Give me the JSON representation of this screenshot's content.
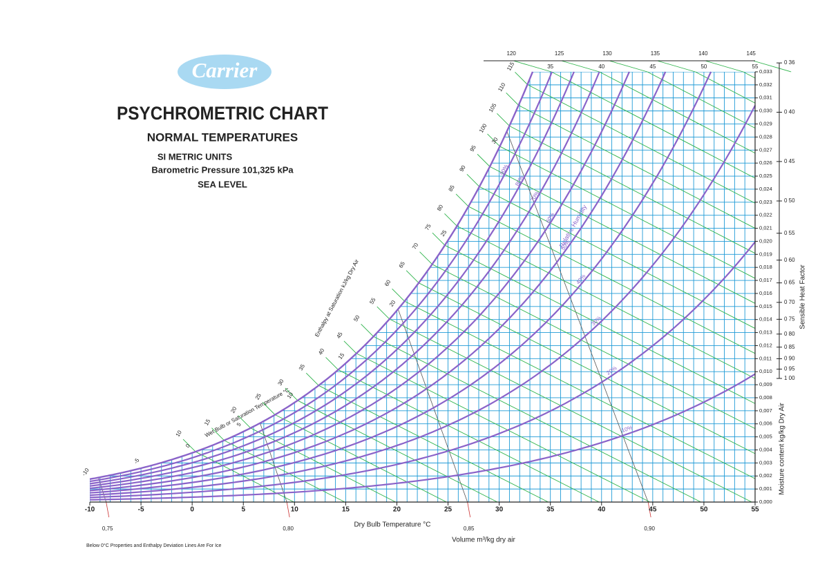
{
  "header": {
    "logo": "Carrier",
    "title": "PSYCHROMETRIC CHART",
    "subtitle": "NORMAL TEMPERATURES",
    "units": "SI METRIC UNITS",
    "pressure": "Barometric Pressure 101,325 kPa",
    "level": "SEA LEVEL"
  },
  "chart_data": {
    "type": "psychrometric",
    "xlabel": "Dry Bulb Temperature  °C",
    "ylabel": "Moisture content  kg/kg Dry Air",
    "xlim": [
      -10,
      55
    ],
    "ylim": [
      0,
      0.033
    ],
    "xticks": [
      -10,
      -5,
      0,
      5,
      10,
      15,
      20,
      25,
      30,
      35,
      40,
      45,
      50,
      55
    ],
    "xgrid": [
      -10,
      -9,
      -8,
      -7,
      -6,
      -5,
      -4,
      -3,
      -2,
      -1,
      0,
      1,
      2,
      3,
      4,
      5,
      6,
      7,
      8,
      9,
      10,
      11,
      12,
      13,
      14,
      15,
      16,
      17,
      18,
      19,
      20,
      21,
      22,
      23,
      24,
      25,
      26,
      27,
      28,
      29,
      30,
      31,
      32,
      33,
      34,
      35,
      36,
      37,
      38,
      39,
      40,
      41,
      42,
      43,
      44,
      45,
      46,
      47,
      48,
      49,
      50,
      51,
      52,
      53,
      54,
      55
    ],
    "yticks": [
      {
        "value": 0,
        "label": "0,000"
      },
      {
        "value": 0.001,
        "label": "0,001"
      },
      {
        "value": 0.002,
        "label": "0,002"
      },
      {
        "value": 0.003,
        "label": "0,003"
      },
      {
        "value": 0.004,
        "label": "0,004"
      },
      {
        "value": 0.005,
        "label": "0,005"
      },
      {
        "value": 0.006,
        "label": "0,006"
      },
      {
        "value": 0.007,
        "label": "0,007"
      },
      {
        "value": 0.008,
        "label": "0,008"
      },
      {
        "value": 0.009,
        "label": "0,009"
      },
      {
        "value": 0.01,
        "label": "0,010"
      },
      {
        "value": 0.011,
        "label": "0,011"
      },
      {
        "value": 0.012,
        "label": "0,012"
      },
      {
        "value": 0.013,
        "label": "0,013"
      },
      {
        "value": 0.014,
        "label": "0,014"
      },
      {
        "value": 0.015,
        "label": "0,015"
      },
      {
        "value": 0.016,
        "label": "0,016"
      },
      {
        "value": 0.017,
        "label": "0,017"
      },
      {
        "value": 0.018,
        "label": "0,018"
      },
      {
        "value": 0.019,
        "label": "0,019"
      },
      {
        "value": 0.02,
        "label": "0,020"
      },
      {
        "value": 0.021,
        "label": "0,021"
      },
      {
        "value": 0.022,
        "label": "0,022"
      },
      {
        "value": 0.023,
        "label": "0,023"
      },
      {
        "value": 0.024,
        "label": "0,024"
      },
      {
        "value": 0.025,
        "label": "0,025"
      },
      {
        "value": 0.026,
        "label": "0,026"
      },
      {
        "value": 0.027,
        "label": "0,027"
      },
      {
        "value": 0.028,
        "label": "0,028"
      },
      {
        "value": 0.029,
        "label": "0,029"
      },
      {
        "value": 0.03,
        "label": "0,030"
      },
      {
        "value": 0.031,
        "label": "0,031"
      },
      {
        "value": 0.032,
        "label": "0,032"
      },
      {
        "value": 0.033,
        "label": "0,033"
      }
    ],
    "grid": true,
    "grid_color": "#1e9ad6",
    "rh": {
      "name": "Relative Humidity",
      "color": "#8a63c9",
      "values": [
        10,
        20,
        30,
        40,
        50,
        60,
        70,
        80,
        90
      ],
      "value_labels": [
        "10%",
        "20%",
        "30%",
        "40%",
        "50%",
        "60%",
        "70%",
        "80%",
        "90%"
      ]
    },
    "wet_bulb": {
      "name": "Wet Bulb or Saturation Temperature  °C",
      "values": [
        -10,
        -5,
        0,
        5,
        10,
        15,
        20,
        25,
        30
      ]
    },
    "enthalpy": {
      "name": "Enthalpy at Saturation  kJ/kg Dry Air",
      "color": "#2db34a",
      "values": [
        10,
        15,
        20,
        25,
        30,
        35,
        40,
        45,
        50,
        55,
        60,
        65,
        70,
        75,
        80,
        85,
        90,
        95,
        100,
        105,
        110,
        115,
        120,
        125,
        130,
        135,
        140,
        145
      ]
    },
    "volume": {
      "name": "Volume m³/kg dry air",
      "color": "#555555",
      "values": [
        0.75,
        0.8,
        0.85,
        0.9
      ],
      "value_labels": [
        "0,75",
        "0,80",
        "0,85",
        "0,90"
      ]
    },
    "shf": {
      "name": "Sensible Heat Factor",
      "ticks": [
        {
          "value": 0.36,
          "label": "0 36"
        },
        {
          "value": 0.4,
          "label": "0 40"
        },
        {
          "value": 0.45,
          "label": "0 45"
        },
        {
          "value": 0.5,
          "label": "0 50"
        },
        {
          "value": 0.55,
          "label": "0 55"
        },
        {
          "value": 0.6,
          "label": "0 60"
        },
        {
          "value": 0.65,
          "label": "0 65"
        },
        {
          "value": 0.7,
          "label": "0 70"
        },
        {
          "value": 0.75,
          "label": "0 75"
        },
        {
          "value": 0.8,
          "label": "0 80"
        },
        {
          "value": 0.85,
          "label": "0 85"
        },
        {
          "value": 0.9,
          "label": "0 90"
        },
        {
          "value": 0.95,
          "label": "0 95"
        },
        {
          "value": 1,
          "label": "1 00"
        }
      ]
    },
    "note": "Below 0°C  Properties and Enthalpy Deviation Lines Are For Ice"
  }
}
